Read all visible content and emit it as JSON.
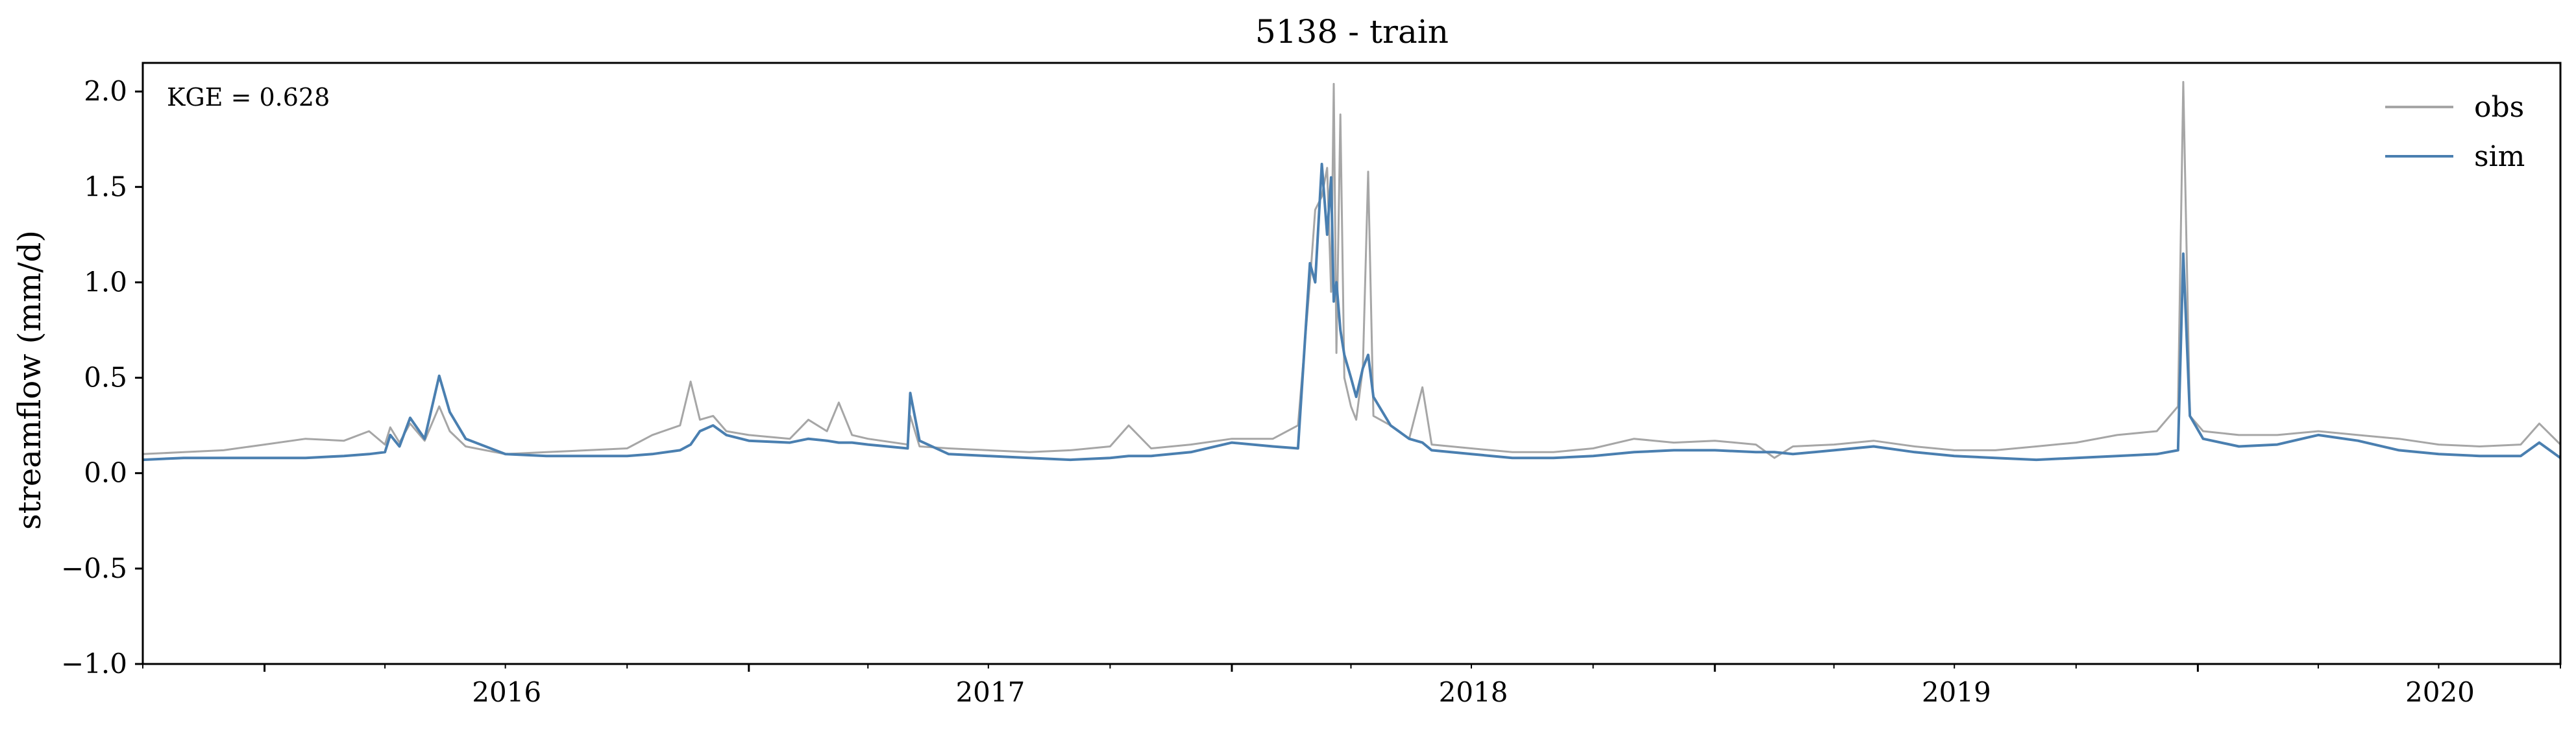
{
  "chart_data": {
    "type": "line",
    "title": "5138 - train",
    "xlabel": "",
    "ylabel": "streamflow (mm/d)",
    "annotation": "KGE = 0.628",
    "legend_position": "top-right",
    "grid": false,
    "xlim": [
      "2015-10-01",
      "2020-10-01"
    ],
    "ylim": [
      -1.0,
      2.15
    ],
    "x_tick_labels": [
      "2016",
      "2017",
      "2018",
      "2019",
      "2020"
    ],
    "y_tick_labels": [
      "−1.0",
      "−0.5",
      "0.0",
      "0.5",
      "1.0",
      "1.5",
      "2.0"
    ],
    "series": [
      {
        "name": "obs",
        "color": "#a6a6a6",
        "points": [
          [
            "2015-10-01",
            0.1
          ],
          [
            "2015-11-01",
            0.11
          ],
          [
            "2015-12-01",
            0.12
          ],
          [
            "2016-01-01",
            0.15
          ],
          [
            "2016-02-01",
            0.18
          ],
          [
            "2016-03-01",
            0.17
          ],
          [
            "2016-03-20",
            0.22
          ],
          [
            "2016-04-01",
            0.15
          ],
          [
            "2016-04-05",
            0.24
          ],
          [
            "2016-04-12",
            0.16
          ],
          [
            "2016-04-20",
            0.26
          ],
          [
            "2016-05-01",
            0.17
          ],
          [
            "2016-05-12",
            0.35
          ],
          [
            "2016-05-20",
            0.22
          ],
          [
            "2016-06-01",
            0.14
          ],
          [
            "2016-07-01",
            0.1
          ],
          [
            "2016-08-01",
            0.11
          ],
          [
            "2016-09-01",
            0.12
          ],
          [
            "2016-10-01",
            0.13
          ],
          [
            "2016-10-20",
            0.2
          ],
          [
            "2016-11-10",
            0.25
          ],
          [
            "2016-11-18",
            0.48
          ],
          [
            "2016-11-25",
            0.28
          ],
          [
            "2016-12-05",
            0.3
          ],
          [
            "2016-12-15",
            0.22
          ],
          [
            "2017-01-01",
            0.2
          ],
          [
            "2017-02-01",
            0.18
          ],
          [
            "2017-02-15",
            0.28
          ],
          [
            "2017-03-01",
            0.22
          ],
          [
            "2017-03-10",
            0.37
          ],
          [
            "2017-03-20",
            0.2
          ],
          [
            "2017-04-01",
            0.18
          ],
          [
            "2017-05-01",
            0.15
          ],
          [
            "2017-05-03",
            0.3
          ],
          [
            "2017-05-10",
            0.14
          ],
          [
            "2017-06-01",
            0.13
          ],
          [
            "2017-07-01",
            0.12
          ],
          [
            "2017-08-01",
            0.11
          ],
          [
            "2017-09-01",
            0.12
          ],
          [
            "2017-10-01",
            0.14
          ],
          [
            "2017-10-15",
            0.25
          ],
          [
            "2017-11-01",
            0.13
          ],
          [
            "2017-12-01",
            0.15
          ],
          [
            "2018-01-01",
            0.18
          ],
          [
            "2018-02-01",
            0.18
          ],
          [
            "2018-02-20",
            0.25
          ],
          [
            "2018-03-01",
            1.0
          ],
          [
            "2018-03-05",
            1.38
          ],
          [
            "2018-03-10",
            1.45
          ],
          [
            "2018-03-14",
            1.6
          ],
          [
            "2018-03-17",
            0.95
          ],
          [
            "2018-03-19",
            2.04
          ],
          [
            "2018-03-21",
            0.63
          ],
          [
            "2018-03-24",
            1.88
          ],
          [
            "2018-03-27",
            0.5
          ],
          [
            "2018-04-01",
            0.35
          ],
          [
            "2018-04-05",
            0.28
          ],
          [
            "2018-04-10",
            0.55
          ],
          [
            "2018-04-14",
            1.58
          ],
          [
            "2018-04-18",
            0.3
          ],
          [
            "2018-05-01",
            0.25
          ],
          [
            "2018-05-15",
            0.18
          ],
          [
            "2018-05-25",
            0.45
          ],
          [
            "2018-06-01",
            0.15
          ],
          [
            "2018-07-01",
            0.13
          ],
          [
            "2018-08-01",
            0.11
          ],
          [
            "2018-09-01",
            0.11
          ],
          [
            "2018-10-01",
            0.13
          ],
          [
            "2018-11-01",
            0.18
          ],
          [
            "2018-12-01",
            0.16
          ],
          [
            "2019-01-01",
            0.17
          ],
          [
            "2019-02-01",
            0.15
          ],
          [
            "2019-02-15",
            0.08
          ],
          [
            "2019-03-01",
            0.14
          ],
          [
            "2019-04-01",
            0.15
          ],
          [
            "2019-05-01",
            0.17
          ],
          [
            "2019-06-01",
            0.14
          ],
          [
            "2019-07-01",
            0.12
          ],
          [
            "2019-08-01",
            0.12
          ],
          [
            "2019-09-01",
            0.14
          ],
          [
            "2019-10-01",
            0.16
          ],
          [
            "2019-11-01",
            0.2
          ],
          [
            "2019-12-01",
            0.22
          ],
          [
            "2019-12-17",
            0.35
          ],
          [
            "2019-12-21",
            2.05
          ],
          [
            "2019-12-26",
            0.3
          ],
          [
            "2020-01-05",
            0.22
          ],
          [
            "2020-02-01",
            0.2
          ],
          [
            "2020-03-01",
            0.2
          ],
          [
            "2020-04-01",
            0.22
          ],
          [
            "2020-05-01",
            0.2
          ],
          [
            "2020-06-01",
            0.18
          ],
          [
            "2020-07-01",
            0.15
          ],
          [
            "2020-08-01",
            0.14
          ],
          [
            "2020-09-01",
            0.15
          ],
          [
            "2020-09-15",
            0.26
          ],
          [
            "2020-10-01",
            0.15
          ]
        ]
      },
      {
        "name": "sim",
        "color": "#4a7fb0",
        "points": [
          [
            "2015-10-01",
            0.07
          ],
          [
            "2015-11-01",
            0.08
          ],
          [
            "2015-12-01",
            0.08
          ],
          [
            "2016-01-01",
            0.08
          ],
          [
            "2016-02-01",
            0.08
          ],
          [
            "2016-03-01",
            0.09
          ],
          [
            "2016-03-20",
            0.1
          ],
          [
            "2016-04-01",
            0.11
          ],
          [
            "2016-04-05",
            0.2
          ],
          [
            "2016-04-12",
            0.14
          ],
          [
            "2016-04-20",
            0.29
          ],
          [
            "2016-05-01",
            0.18
          ],
          [
            "2016-05-12",
            0.51
          ],
          [
            "2016-05-20",
            0.32
          ],
          [
            "2016-06-01",
            0.18
          ],
          [
            "2016-07-01",
            0.1
          ],
          [
            "2016-08-01",
            0.09
          ],
          [
            "2016-09-01",
            0.09
          ],
          [
            "2016-10-01",
            0.09
          ],
          [
            "2016-10-20",
            0.1
          ],
          [
            "2016-11-10",
            0.12
          ],
          [
            "2016-11-18",
            0.15
          ],
          [
            "2016-11-25",
            0.22
          ],
          [
            "2016-12-05",
            0.25
          ],
          [
            "2016-12-15",
            0.2
          ],
          [
            "2017-01-01",
            0.17
          ],
          [
            "2017-02-01",
            0.16
          ],
          [
            "2017-02-15",
            0.18
          ],
          [
            "2017-03-01",
            0.17
          ],
          [
            "2017-03-10",
            0.16
          ],
          [
            "2017-03-20",
            0.16
          ],
          [
            "2017-04-01",
            0.15
          ],
          [
            "2017-05-01",
            0.13
          ],
          [
            "2017-05-03",
            0.42
          ],
          [
            "2017-05-10",
            0.17
          ],
          [
            "2017-06-01",
            0.1
          ],
          [
            "2017-07-01",
            0.09
          ],
          [
            "2017-08-01",
            0.08
          ],
          [
            "2017-09-01",
            0.07
          ],
          [
            "2017-10-01",
            0.08
          ],
          [
            "2017-10-15",
            0.09
          ],
          [
            "2017-11-01",
            0.09
          ],
          [
            "2017-12-01",
            0.11
          ],
          [
            "2018-01-01",
            0.16
          ],
          [
            "2018-02-01",
            0.14
          ],
          [
            "2018-02-20",
            0.13
          ],
          [
            "2018-03-01",
            1.1
          ],
          [
            "2018-03-05",
            1.0
          ],
          [
            "2018-03-10",
            1.62
          ],
          [
            "2018-03-14",
            1.25
          ],
          [
            "2018-03-17",
            1.55
          ],
          [
            "2018-03-19",
            0.9
          ],
          [
            "2018-03-21",
            1.0
          ],
          [
            "2018-03-24",
            0.75
          ],
          [
            "2018-03-27",
            0.62
          ],
          [
            "2018-04-01",
            0.5
          ],
          [
            "2018-04-05",
            0.4
          ],
          [
            "2018-04-10",
            0.55
          ],
          [
            "2018-04-14",
            0.62
          ],
          [
            "2018-04-18",
            0.4
          ],
          [
            "2018-05-01",
            0.25
          ],
          [
            "2018-05-15",
            0.18
          ],
          [
            "2018-05-25",
            0.16
          ],
          [
            "2018-06-01",
            0.12
          ],
          [
            "2018-07-01",
            0.1
          ],
          [
            "2018-08-01",
            0.08
          ],
          [
            "2018-09-01",
            0.08
          ],
          [
            "2018-10-01",
            0.09
          ],
          [
            "2018-11-01",
            0.11
          ],
          [
            "2018-12-01",
            0.12
          ],
          [
            "2019-01-01",
            0.12
          ],
          [
            "2019-02-01",
            0.11
          ],
          [
            "2019-02-15",
            0.11
          ],
          [
            "2019-03-01",
            0.1
          ],
          [
            "2019-04-01",
            0.12
          ],
          [
            "2019-05-01",
            0.14
          ],
          [
            "2019-06-01",
            0.11
          ],
          [
            "2019-07-01",
            0.09
          ],
          [
            "2019-08-01",
            0.08
          ],
          [
            "2019-09-01",
            0.07
          ],
          [
            "2019-10-01",
            0.08
          ],
          [
            "2019-11-01",
            0.09
          ],
          [
            "2019-12-01",
            0.1
          ],
          [
            "2019-12-17",
            0.12
          ],
          [
            "2019-12-21",
            1.15
          ],
          [
            "2019-12-26",
            0.3
          ],
          [
            "2020-01-05",
            0.18
          ],
          [
            "2020-02-01",
            0.14
          ],
          [
            "2020-03-01",
            0.15
          ],
          [
            "2020-04-01",
            0.2
          ],
          [
            "2020-05-01",
            0.17
          ],
          [
            "2020-06-01",
            0.12
          ],
          [
            "2020-07-01",
            0.1
          ],
          [
            "2020-08-01",
            0.09
          ],
          [
            "2020-09-01",
            0.09
          ],
          [
            "2020-09-15",
            0.16
          ],
          [
            "2020-10-01",
            0.08
          ]
        ]
      }
    ]
  }
}
